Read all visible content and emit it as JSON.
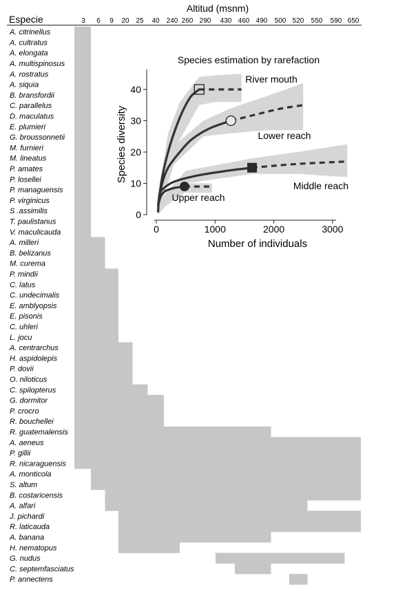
{
  "chart_data": [
    {
      "type": "range",
      "title": "Altitud (msnm)",
      "row_header": "Especie",
      "altitudes": [
        "3",
        "6",
        "9",
        "20",
        "25",
        "40",
        "240",
        "260",
        "290",
        "430",
        "460",
        "490",
        "500",
        "520",
        "550",
        "590",
        "650"
      ],
      "species": [
        {
          "name": "A. citrinellus",
          "range": [
            "3",
            "3"
          ]
        },
        {
          "name": "A. cultratus",
          "range": [
            "3",
            "3"
          ]
        },
        {
          "name": "A. elongata",
          "range": [
            "3",
            "3"
          ]
        },
        {
          "name": "A. multispinosus",
          "range": [
            "3",
            "3"
          ]
        },
        {
          "name": "A. rostratus",
          "range": [
            "3",
            "3"
          ]
        },
        {
          "name": "A. siquia",
          "range": [
            "3",
            "3"
          ]
        },
        {
          "name": "B. bransfordii",
          "range": [
            "3",
            "3"
          ]
        },
        {
          "name": "C. parallelus",
          "range": [
            "3",
            "3"
          ]
        },
        {
          "name": "D. maculatus",
          "range": [
            "3",
            "3"
          ]
        },
        {
          "name": "E. plumieri",
          "range": [
            "3",
            "3"
          ]
        },
        {
          "name": "G. broussonnetii",
          "range": [
            "3",
            "3"
          ]
        },
        {
          "name": "M. furnieri",
          "range": [
            "3",
            "3"
          ]
        },
        {
          "name": "M. lineatus",
          "range": [
            "3",
            "3"
          ]
        },
        {
          "name": "P. amates",
          "range": [
            "3",
            "3"
          ]
        },
        {
          "name": "P. losellei",
          "range": [
            "3",
            "3"
          ]
        },
        {
          "name": "P. managuensis",
          "range": [
            "3",
            "3"
          ]
        },
        {
          "name": "P. virginicus",
          "range": [
            "3",
            "3"
          ]
        },
        {
          "name": "S .assimilis",
          "range": [
            "3",
            "3"
          ]
        },
        {
          "name": "T. paulistanus",
          "range": [
            "3",
            "3"
          ]
        },
        {
          "name": "V. maculicauda",
          "range": [
            "3",
            "3"
          ]
        },
        {
          "name": "A. milleri",
          "range": [
            "3",
            "6"
          ]
        },
        {
          "name": "B. belizanus",
          "range": [
            "3",
            "6"
          ]
        },
        {
          "name": "M. curema",
          "range": [
            "3",
            "6"
          ]
        },
        {
          "name": "P. mindii",
          "range": [
            "3",
            "9"
          ]
        },
        {
          "name": "C. latus",
          "range": [
            "3",
            "9"
          ]
        },
        {
          "name": "C. undecimalis",
          "range": [
            "3",
            "9"
          ]
        },
        {
          "name": "E. amblyopsis",
          "range": [
            "3",
            "9"
          ]
        },
        {
          "name": "E. pisonis",
          "range": [
            "3",
            "9"
          ]
        },
        {
          "name": "C. uhleri",
          "range": [
            "3",
            "9"
          ]
        },
        {
          "name": "L. jocu",
          "range": [
            "3",
            "9"
          ]
        },
        {
          "name": "A. centrarchus",
          "range": [
            "3",
            "20"
          ]
        },
        {
          "name": "H. aspidolepis",
          "range": [
            "3",
            "20"
          ]
        },
        {
          "name": "P. dovii",
          "range": [
            "3",
            "20"
          ]
        },
        {
          "name": "O. niloticus",
          "range": [
            "3",
            "20"
          ]
        },
        {
          "name": "C. spilopterus",
          "range": [
            "3",
            "25"
          ]
        },
        {
          "name": "G. dormitor",
          "range": [
            "3",
            "40"
          ]
        },
        {
          "name": "P. crocro",
          "range": [
            "3",
            "40"
          ]
        },
        {
          "name": "R. bouchellei",
          "range": [
            "3",
            "40"
          ]
        },
        {
          "name": "R. guatemalensis",
          "range": [
            "3",
            "490"
          ]
        },
        {
          "name": "A. aeneus",
          "range": [
            "3",
            "650"
          ]
        },
        {
          "name": "P. gillii",
          "range": [
            "3",
            "650"
          ]
        },
        {
          "name": "R. nicaraguensis",
          "range": [
            "3",
            "650"
          ]
        },
        {
          "name": "A. monticola",
          "range": [
            "6",
            "650"
          ]
        },
        {
          "name": "S. altum",
          "range": [
            "6",
            "650"
          ]
        },
        {
          "name": "B. costaricensis",
          "range": [
            "9",
            "650"
          ]
        },
        {
          "name": "A. alfari",
          "range": [
            "9",
            "520"
          ]
        },
        {
          "name": "J. pichardi",
          "range": [
            "20",
            "650"
          ]
        },
        {
          "name": "R. laticauda",
          "range": [
            "20",
            "650"
          ]
        },
        {
          "name": "A. banana",
          "range": [
            "20",
            "490"
          ]
        },
        {
          "name": "H. nematopus",
          "range": [
            "20",
            "240"
          ]
        },
        {
          "name": "G. nudus",
          "range": [
            "430",
            "590"
          ]
        },
        {
          "name": "C. septemfasciatus",
          "range": [
            "460",
            "490"
          ]
        },
        {
          "name": "P. annectens",
          "range": [
            "520",
            "520"
          ]
        }
      ]
    },
    {
      "type": "line",
      "title": "Species estimation by rarefaction",
      "xlabel": "Number of individuals",
      "ylabel": "Species diversity",
      "xlim": [
        0,
        3300
      ],
      "ylim": [
        0,
        44
      ],
      "xticks": [
        "0",
        "1000",
        "2000",
        "3000"
      ],
      "yticks": [
        "0",
        "10",
        "20",
        "30",
        "40"
      ],
      "series": [
        {
          "name": "River mouth",
          "marker": "square-open",
          "n_obs": 730,
          "s_obs": 40,
          "s_max": 40,
          "x_end": 1450,
          "interpolated": [
            [
              30,
              3
            ],
            [
              100,
              12
            ],
            [
              200,
              20
            ],
            [
              300,
              26
            ],
            [
              400,
              31
            ],
            [
              500,
              35
            ],
            [
              600,
              38
            ],
            [
              730,
              40
            ]
          ],
          "extrapolated": [
            [
              730,
              40
            ],
            [
              1450,
              40
            ]
          ],
          "band": [
            [
              30,
              0,
              6
            ],
            [
              200,
              12,
              26
            ],
            [
              400,
              24,
              36
            ],
            [
              730,
              35,
              44
            ],
            [
              1000,
              36,
              44.5
            ],
            [
              1450,
              36,
              45
            ]
          ]
        },
        {
          "name": "Lower reach",
          "marker": "circle-open",
          "n_obs": 1270,
          "s_obs": 30,
          "s_max": 35,
          "x_end": 2500,
          "interpolated": [
            [
              30,
              3
            ],
            [
              100,
              10
            ],
            [
              200,
              15
            ],
            [
              400,
              20
            ],
            [
              600,
              24
            ],
            [
              900,
              27.5
            ],
            [
              1270,
              30
            ]
          ],
          "extrapolated": [
            [
              1270,
              30
            ],
            [
              1700,
              32
            ],
            [
              2100,
              33.8
            ],
            [
              2500,
              35
            ]
          ],
          "band": [
            [
              30,
              0,
              5
            ],
            [
              300,
              16,
              22
            ],
            [
              800,
              25,
              30
            ],
            [
              1270,
              26,
              34
            ],
            [
              1900,
              27,
              38
            ],
            [
              2500,
              27,
              42
            ]
          ]
        },
        {
          "name": "Middle reach",
          "marker": "square-filled",
          "n_obs": 1630,
          "s_obs": 15,
          "s_max": 17,
          "x_end": 3250,
          "interpolated": [
            [
              30,
              1
            ],
            [
              50,
              6
            ],
            [
              100,
              8
            ],
            [
              300,
              10.5
            ],
            [
              700,
              12.5
            ],
            [
              1200,
              14
            ],
            [
              1630,
              15
            ]
          ],
          "extrapolated": [
            [
              1630,
              15
            ],
            [
              2400,
              16.2
            ],
            [
              3250,
              17
            ]
          ],
          "band": [
            [
              30,
              0,
              4
            ],
            [
              500,
              10,
              14
            ],
            [
              1630,
              13,
              18
            ],
            [
              2400,
              13,
              20
            ],
            [
              3250,
              12,
              22.5
            ]
          ]
        },
        {
          "name": "Upper reach",
          "marker": "circle-filled",
          "n_obs": 480,
          "s_obs": 9,
          "s_max": 9,
          "x_end": 950,
          "interpolated": [
            [
              30,
              3
            ],
            [
              80,
              6
            ],
            [
              150,
              7.5
            ],
            [
              300,
              8.5
            ],
            [
              480,
              9
            ]
          ],
          "extrapolated": [
            [
              480,
              9
            ],
            [
              950,
              9
            ]
          ],
          "band": [
            [
              30,
              1,
              4
            ],
            [
              480,
              7,
              10
            ],
            [
              950,
              7,
              10
            ]
          ]
        }
      ]
    }
  ]
}
